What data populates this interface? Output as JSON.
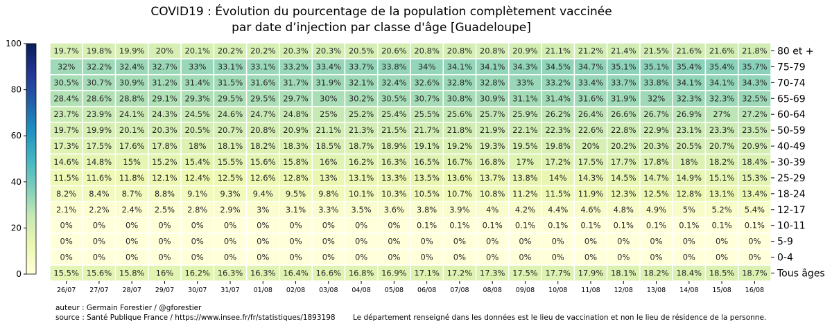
{
  "chart_data": {
    "type": "heatmap",
    "title_line1": "COVID19 : Évolution du pourcentage de la population complètement vaccinée",
    "title_line2": "par date d’injection par classe d'âge [Guadeloupe]",
    "dates": [
      "26/07",
      "27/07",
      "28/07",
      "29/07",
      "30/07",
      "31/07",
      "01/08",
      "02/08",
      "03/08",
      "04/08",
      "05/08",
      "06/08",
      "07/08",
      "08/08",
      "09/08",
      "10/08",
      "11/08",
      "12/08",
      "13/08",
      "14/08",
      "15/08",
      "16/08"
    ],
    "rows": [
      {
        "label": "80 et +",
        "values": [
          19.7,
          19.8,
          19.9,
          20,
          20.1,
          20.2,
          20.2,
          20.3,
          20.3,
          20.5,
          20.6,
          20.8,
          20.8,
          20.8,
          20.9,
          21.1,
          21.2,
          21.4,
          21.5,
          21.6,
          21.6,
          21.8
        ]
      },
      {
        "label": "75-79",
        "values": [
          32,
          32.2,
          32.4,
          32.7,
          33,
          33.1,
          33.1,
          33.2,
          33.4,
          33.7,
          33.8,
          34,
          34.1,
          34.1,
          34.3,
          34.5,
          34.7,
          35.1,
          35.1,
          35.4,
          35.4,
          35.7
        ]
      },
      {
        "label": "70-74",
        "values": [
          30.5,
          30.7,
          30.9,
          31.2,
          31.4,
          31.5,
          31.6,
          31.7,
          31.9,
          32.1,
          32.4,
          32.6,
          32.8,
          32.8,
          33,
          33.2,
          33.4,
          33.7,
          33.8,
          34.1,
          34.1,
          34.3
        ]
      },
      {
        "label": "65-69",
        "values": [
          28.4,
          28.6,
          28.8,
          29.1,
          29.3,
          29.5,
          29.5,
          29.7,
          30,
          30.2,
          30.5,
          30.7,
          30.8,
          30.9,
          31.1,
          31.4,
          31.6,
          31.9,
          32,
          32.3,
          32.3,
          32.5
        ]
      },
      {
        "label": "60-64",
        "values": [
          23.7,
          23.9,
          24.1,
          24.3,
          24.5,
          24.6,
          24.7,
          24.8,
          25,
          25.2,
          25.4,
          25.5,
          25.6,
          25.7,
          25.9,
          26.2,
          26.4,
          26.6,
          26.7,
          26.9,
          27,
          27.2
        ]
      },
      {
        "label": "50-59",
        "values": [
          19.7,
          19.9,
          20.1,
          20.3,
          20.5,
          20.7,
          20.8,
          20.9,
          21.1,
          21.3,
          21.5,
          21.7,
          21.8,
          21.9,
          22.1,
          22.3,
          22.6,
          22.8,
          22.9,
          23.1,
          23.3,
          23.5
        ]
      },
      {
        "label": "40-49",
        "values": [
          17.3,
          17.5,
          17.6,
          17.8,
          18,
          18.1,
          18.2,
          18.3,
          18.5,
          18.7,
          18.9,
          19.1,
          19.2,
          19.3,
          19.5,
          19.8,
          20,
          20.2,
          20.3,
          20.5,
          20.7,
          20.9
        ]
      },
      {
        "label": "30-39",
        "values": [
          14.6,
          14.8,
          15,
          15.2,
          15.4,
          15.5,
          15.6,
          15.8,
          16,
          16.2,
          16.3,
          16.5,
          16.7,
          16.8,
          17,
          17.2,
          17.5,
          17.7,
          17.8,
          18,
          18.2,
          18.4
        ]
      },
      {
        "label": "25-29",
        "values": [
          11.5,
          11.6,
          11.8,
          12.1,
          12.4,
          12.5,
          12.6,
          12.8,
          13,
          13.1,
          13.3,
          13.5,
          13.6,
          13.7,
          13.8,
          14,
          14.3,
          14.5,
          14.7,
          14.9,
          15.1,
          15.3
        ]
      },
      {
        "label": "18-24",
        "values": [
          8.2,
          8.4,
          8.7,
          8.8,
          9.1,
          9.3,
          9.4,
          9.5,
          9.8,
          10.1,
          10.3,
          10.5,
          10.7,
          10.8,
          11.2,
          11.5,
          11.9,
          12.3,
          12.5,
          12.8,
          13.1,
          13.4
        ]
      },
      {
        "label": "12-17",
        "values": [
          2.1,
          2.2,
          2.4,
          2.5,
          2.8,
          2.9,
          3,
          3.1,
          3.3,
          3.5,
          3.6,
          3.8,
          3.9,
          4,
          4.2,
          4.4,
          4.6,
          4.8,
          4.9,
          5,
          5.2,
          5.4
        ]
      },
      {
        "label": "10-11",
        "values": [
          0,
          0,
          0,
          0,
          0,
          0,
          0,
          0,
          0,
          0,
          0,
          0.1,
          0.1,
          0.1,
          0.1,
          0.1,
          0.1,
          0.1,
          0.1,
          0.1,
          0.1,
          0.1
        ]
      },
      {
        "label": "5-9",
        "values": [
          0,
          0,
          0,
          0,
          0,
          0,
          0,
          0,
          0,
          0,
          0,
          0,
          0,
          0,
          0,
          0,
          0,
          0,
          0,
          0,
          0,
          0
        ]
      },
      {
        "label": "0-4",
        "values": [
          0,
          0,
          0,
          0,
          0,
          0,
          0,
          0,
          0,
          0,
          0,
          0,
          0,
          0,
          0,
          0,
          0,
          0,
          0,
          0,
          0,
          0
        ]
      },
      {
        "label": "Tous âges",
        "values": [
          15.5,
          15.6,
          15.8,
          16,
          16.2,
          16.3,
          16.3,
          16.4,
          16.6,
          16.8,
          16.9,
          17.1,
          17.2,
          17.3,
          17.5,
          17.7,
          17.9,
          18.1,
          18.2,
          18.4,
          18.5,
          18.7
        ]
      }
    ],
    "value_suffix": "%",
    "colorbar": {
      "min": 0,
      "max": 100,
      "ticks": [
        0,
        20,
        40,
        60,
        80,
        100
      ],
      "colormap": "YlGnBu"
    }
  },
  "footer": {
    "author": "auteur : Germain Forestier / @gforestier",
    "source": "source : Santé Publique France / https://www.insee.fr/fr/statistiques/1893198",
    "note": "Le département renseigné dans les données est le lieu de vaccination et non le lieu de résidence de la personne."
  },
  "colors": {
    "grid_line": "#ffffff",
    "text": "#262626"
  }
}
